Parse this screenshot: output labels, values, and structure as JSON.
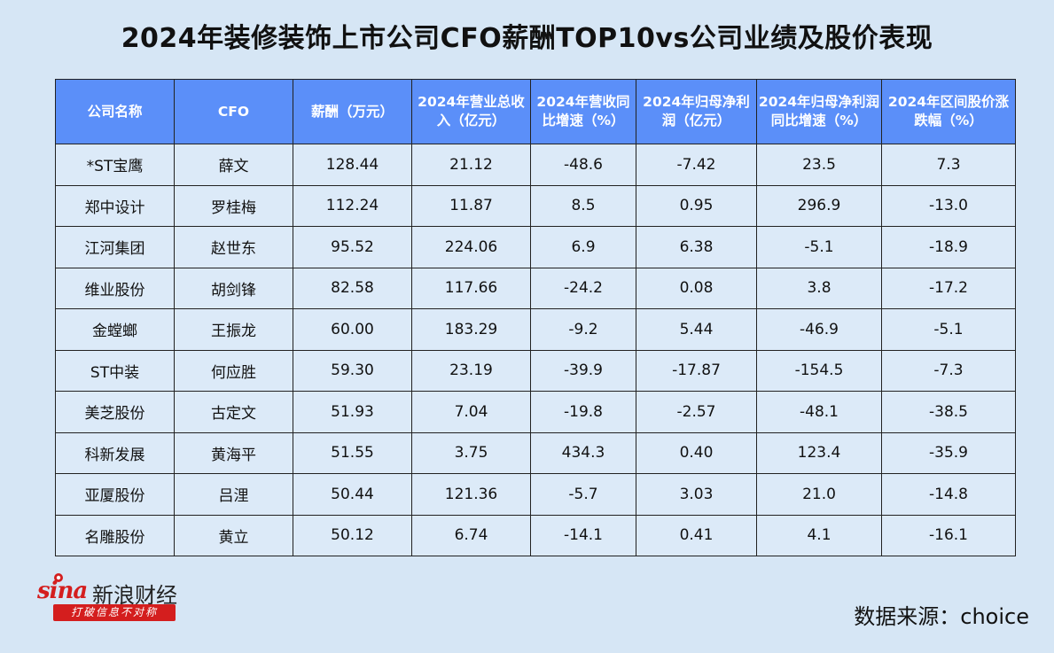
{
  "title": "2024年装修装饰上市公司CFO薪酬TOP10vs公司业绩及股价表现",
  "chart_data": {
    "type": "table",
    "columns": [
      "公司名称",
      "CFO",
      "薪酬（万元）",
      "2024年营业总收入（亿元）",
      "2024年营收同比增速（%）",
      "2024年归母净利润（亿元）",
      "2024年归母净利润同比增速（%）",
      "2024年区间股价涨跌幅（%）"
    ],
    "rows": [
      [
        "*ST宝鹰",
        "薛文",
        "128.44",
        "21.12",
        "-48.6",
        "-7.42",
        "23.5",
        "7.3"
      ],
      [
        "郑中设计",
        "罗桂梅",
        "112.24",
        "11.87",
        "8.5",
        "0.95",
        "296.9",
        "-13.0"
      ],
      [
        "江河集团",
        "赵世东",
        "95.52",
        "224.06",
        "6.9",
        "6.38",
        "-5.1",
        "-18.9"
      ],
      [
        "维业股份",
        "胡剑锋",
        "82.58",
        "117.66",
        "-24.2",
        "0.08",
        "3.8",
        "-17.2"
      ],
      [
        "金螳螂",
        "王振龙",
        "60.00",
        "183.29",
        "-9.2",
        "5.44",
        "-46.9",
        "-5.1"
      ],
      [
        "ST中装",
        "何应胜",
        "59.30",
        "23.19",
        "-39.9",
        "-17.87",
        "-154.5",
        "-7.3"
      ],
      [
        "美芝股份",
        "古定文",
        "51.93",
        "7.04",
        "-19.8",
        "-2.57",
        "-48.1",
        "-38.5"
      ],
      [
        "科新发展",
        "黄海平",
        "51.55",
        "3.75",
        "434.3",
        "0.40",
        "123.4",
        "-35.9"
      ],
      [
        "亚厦股份",
        "吕浬",
        "50.44",
        "121.36",
        "-5.7",
        "3.03",
        "21.0",
        "-14.8"
      ],
      [
        "名雕股份",
        "黄立",
        "50.12",
        "6.74",
        "-14.1",
        "0.41",
        "4.1",
        "-16.1"
      ]
    ]
  },
  "logo": {
    "brand": "sina",
    "name": "新浪财经",
    "slogan": "打破信息不对称"
  },
  "source": "数据来源：choice",
  "colors": {
    "background": "#d6e6f5",
    "header_fill": "#5b8ff9",
    "cell_fill": "#dceaf8",
    "brand_red": "#d41e1e"
  }
}
